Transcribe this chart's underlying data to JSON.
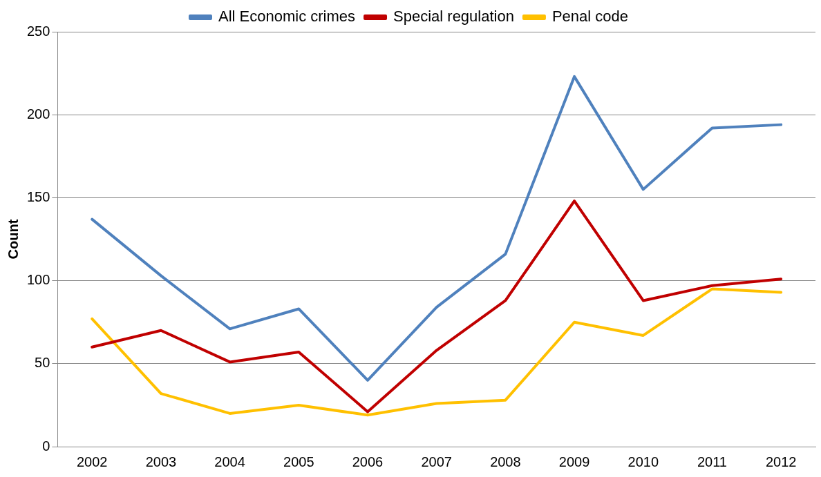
{
  "chart_data": {
    "type": "line",
    "ylabel": "Count",
    "categories": [
      "2002",
      "2003",
      "2004",
      "2005",
      "2006",
      "2007",
      "2008",
      "2009",
      "2010",
      "2011",
      "2012"
    ],
    "series": [
      {
        "name": "All Economic crimes",
        "color": "#4f81bd",
        "values": [
          137,
          103,
          71,
          83,
          40,
          84,
          116,
          223,
          155,
          192,
          194
        ]
      },
      {
        "name": "Special regulation",
        "color": "#c00000",
        "values": [
          60,
          70,
          51,
          57,
          21,
          58,
          88,
          148,
          88,
          97,
          101
        ]
      },
      {
        "name": "Penal code",
        "color": "#ffc000",
        "values": [
          77,
          32,
          20,
          25,
          19,
          26,
          28,
          75,
          67,
          95,
          93
        ]
      }
    ],
    "ylim": [
      0,
      250
    ],
    "yticks": [
      0,
      50,
      100,
      150,
      200,
      250
    ],
    "grid": "y",
    "legend": "top",
    "marker": "none",
    "line_style": "solid"
  }
}
